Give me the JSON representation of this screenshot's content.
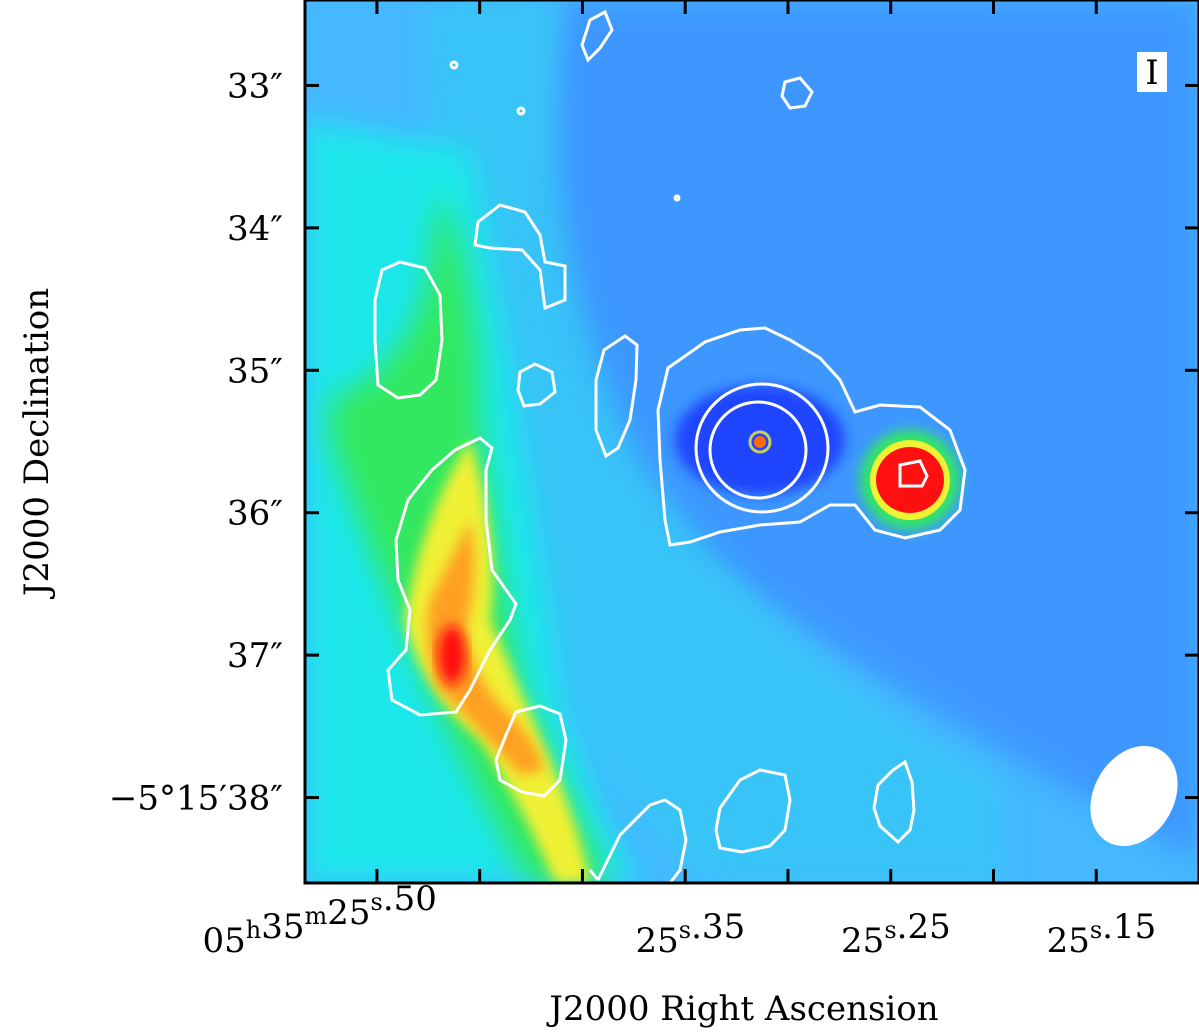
{
  "chart_data": {
    "type": "heatmap",
    "title": "",
    "panel_label": "I",
    "xlabel": "J2000 Right Ascension",
    "ylabel": "J2000 Declination",
    "colormap": [
      "#1a3cff",
      "#3a8cff",
      "#35c8f5",
      "#19f0e8",
      "#33e860",
      "#7ee83a",
      "#f0f035",
      "#ffa020",
      "#ff1010"
    ],
    "background_color": "#45b8ff",
    "contour_color": "#ffffff",
    "beam_color": "#ffffff",
    "x_ticks": [
      {
        "value": 25.5,
        "label_parts": [
          "05",
          "h",
          "35",
          "m",
          "25",
          "s",
          ".50"
        ]
      },
      {
        "value": 25.35,
        "label_parts": [
          "25",
          "s",
          ".35"
        ]
      },
      {
        "value": 25.25,
        "label_parts": [
          "25",
          "s",
          ".25"
        ]
      },
      {
        "value": 25.15,
        "label_parts": [
          "25",
          "s",
          ".15"
        ]
      }
    ],
    "y_ticks": [
      {
        "value": 33,
        "label": "33″"
      },
      {
        "value": 34,
        "label": "34″"
      },
      {
        "value": 35,
        "label": "35″"
      },
      {
        "value": 36,
        "label": "36″"
      },
      {
        "value": 37,
        "label": "37″"
      },
      {
        "value": 38,
        "label": "−5°15′38″"
      }
    ],
    "x_minor_ticks": [
      25.45,
      25.4,
      25.3,
      25.2,
      25.1
    ],
    "xlim": [
      25.535,
      25.1
    ],
    "ylim": [
      32.4,
      38.6
    ],
    "features": [
      {
        "name": "filament",
        "ra": 25.48,
        "dec": 36.8,
        "level": "high"
      },
      {
        "name": "compact-source-west",
        "ra": 25.235,
        "dec": 35.7,
        "level": "peak"
      },
      {
        "name": "absorption-core",
        "ra": 25.31,
        "dec": 35.5,
        "level": "low"
      }
    ]
  }
}
